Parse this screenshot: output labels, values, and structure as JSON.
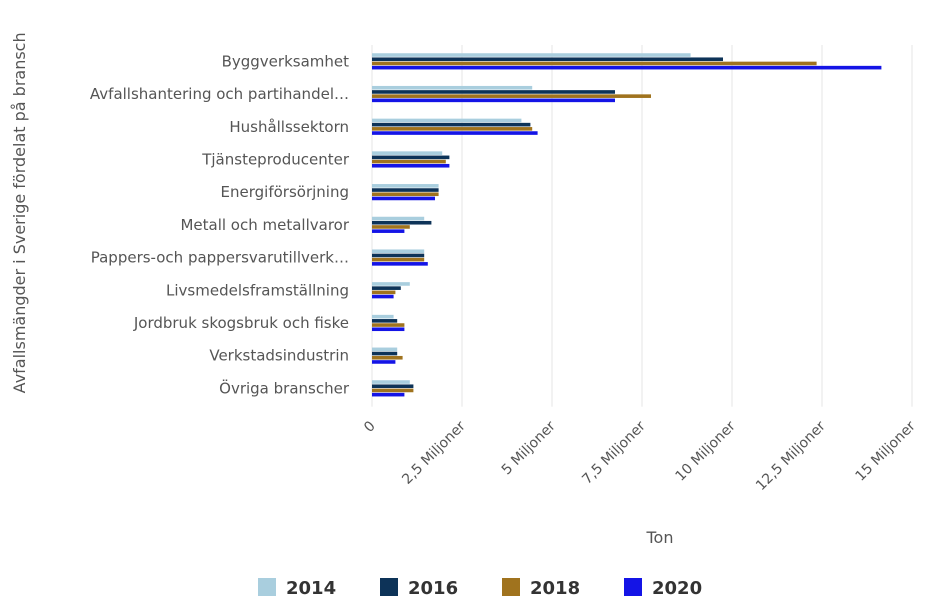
{
  "chart_data": {
    "type": "bar",
    "orientation": "horizontal",
    "title": "",
    "xlabel": "Ton",
    "ylabel": "Avfallsmängder i Sverige fördelat på bransch",
    "xlim": [
      0,
      15000000
    ],
    "x_ticks": [
      {
        "value": 0,
        "label": "0"
      },
      {
        "value": 2500000,
        "label": "2,5 Miljoner"
      },
      {
        "value": 5000000,
        "label": "5 Miljoner"
      },
      {
        "value": 7500000,
        "label": "7,5 Miljoner"
      },
      {
        "value": 10000000,
        "label": "10 Miljoner"
      },
      {
        "value": 12500000,
        "label": "12,5 Miljoner"
      },
      {
        "value": 15000000,
        "label": "15 Miljoner"
      }
    ],
    "grid": true,
    "legend_position": "bottom-center",
    "categories": [
      "Byggverksamhet",
      "Avfallshantering och partihandel…",
      "Hushållssektorn",
      "Tjänsteproducenter",
      "Energiförsörjning",
      "Metall och metallvaror",
      "Pappers-och pappersvarutillverk…",
      "Livsmedelsframställning",
      "Jordbruk skogsbruk och fiske",
      "Verkstadsindustrin",
      "Övriga branscher"
    ],
    "series": [
      {
        "name": "2014",
        "color": "#a9cede",
        "values": [
          8850000,
          4450000,
          4150000,
          1950000,
          1850000,
          1450000,
          1450000,
          1050000,
          600000,
          700000,
          1050000
        ]
      },
      {
        "name": "2016",
        "color": "#0d3358",
        "values": [
          9750000,
          6750000,
          4400000,
          2150000,
          1850000,
          1650000,
          1450000,
          800000,
          700000,
          700000,
          1150000
        ]
      },
      {
        "name": "2018",
        "color": "#a0731e",
        "values": [
          12350000,
          7750000,
          4450000,
          2050000,
          1850000,
          1050000,
          1450000,
          650000,
          900000,
          850000,
          1150000
        ]
      },
      {
        "name": "2020",
        "color": "#1414e6",
        "values": [
          14150000,
          6750000,
          4600000,
          2150000,
          1750000,
          900000,
          1550000,
          600000,
          900000,
          650000,
          900000
        ]
      }
    ]
  }
}
